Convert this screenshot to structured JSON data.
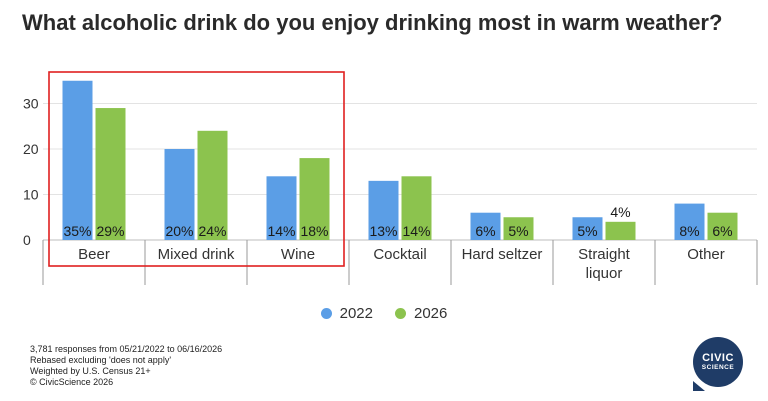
{
  "colors": {
    "series_2022": "#5b9ee6",
    "series_2026": "#8cc34e",
    "highlight_box": "#e02020",
    "logo_bg": "#1f3c67"
  },
  "logo": {
    "line1": "CIVIC",
    "line2": "SCIENCE"
  },
  "notes": [
    "3,781 responses from 05/21/2022 to 06/16/2026",
    "Rebased excluding 'does not apply'",
    "Weighted by U.S. Census 21+",
    "© CivicScience 2026"
  ],
  "chart_data": {
    "type": "bar",
    "title": "What alcoholic drink do you enjoy drinking most in warm weather?",
    "categories": [
      "Beer",
      "Mixed drink",
      "Wine",
      "Cocktail",
      "Hard seltzer",
      "Straight liquor",
      "Other"
    ],
    "category_lines": [
      [
        "Beer"
      ],
      [
        "Mixed drink"
      ],
      [
        "Wine"
      ],
      [
        "Cocktail"
      ],
      [
        "Hard seltzer"
      ],
      [
        "Straight",
        "liquor"
      ],
      [
        "Other"
      ]
    ],
    "series": [
      {
        "name": "2022",
        "values": [
          35,
          20,
          14,
          13,
          6,
          5,
          8
        ],
        "labels": [
          "35%",
          "20%",
          "14%",
          "13%",
          "6%",
          "5%",
          "8%"
        ]
      },
      {
        "name": "2026",
        "values": [
          29,
          24,
          18,
          14,
          5,
          4,
          6
        ],
        "labels": [
          "29%",
          "24%",
          "18%",
          "14%",
          "5%",
          "4%",
          "6%"
        ]
      }
    ],
    "yticks": [
      0,
      10,
      20,
      30
    ],
    "ylim": [
      0,
      38
    ],
    "highlight_categories": [
      "Beer",
      "Mixed drink",
      "Wine"
    ],
    "legend_position": "bottom",
    "grid": true
  }
}
